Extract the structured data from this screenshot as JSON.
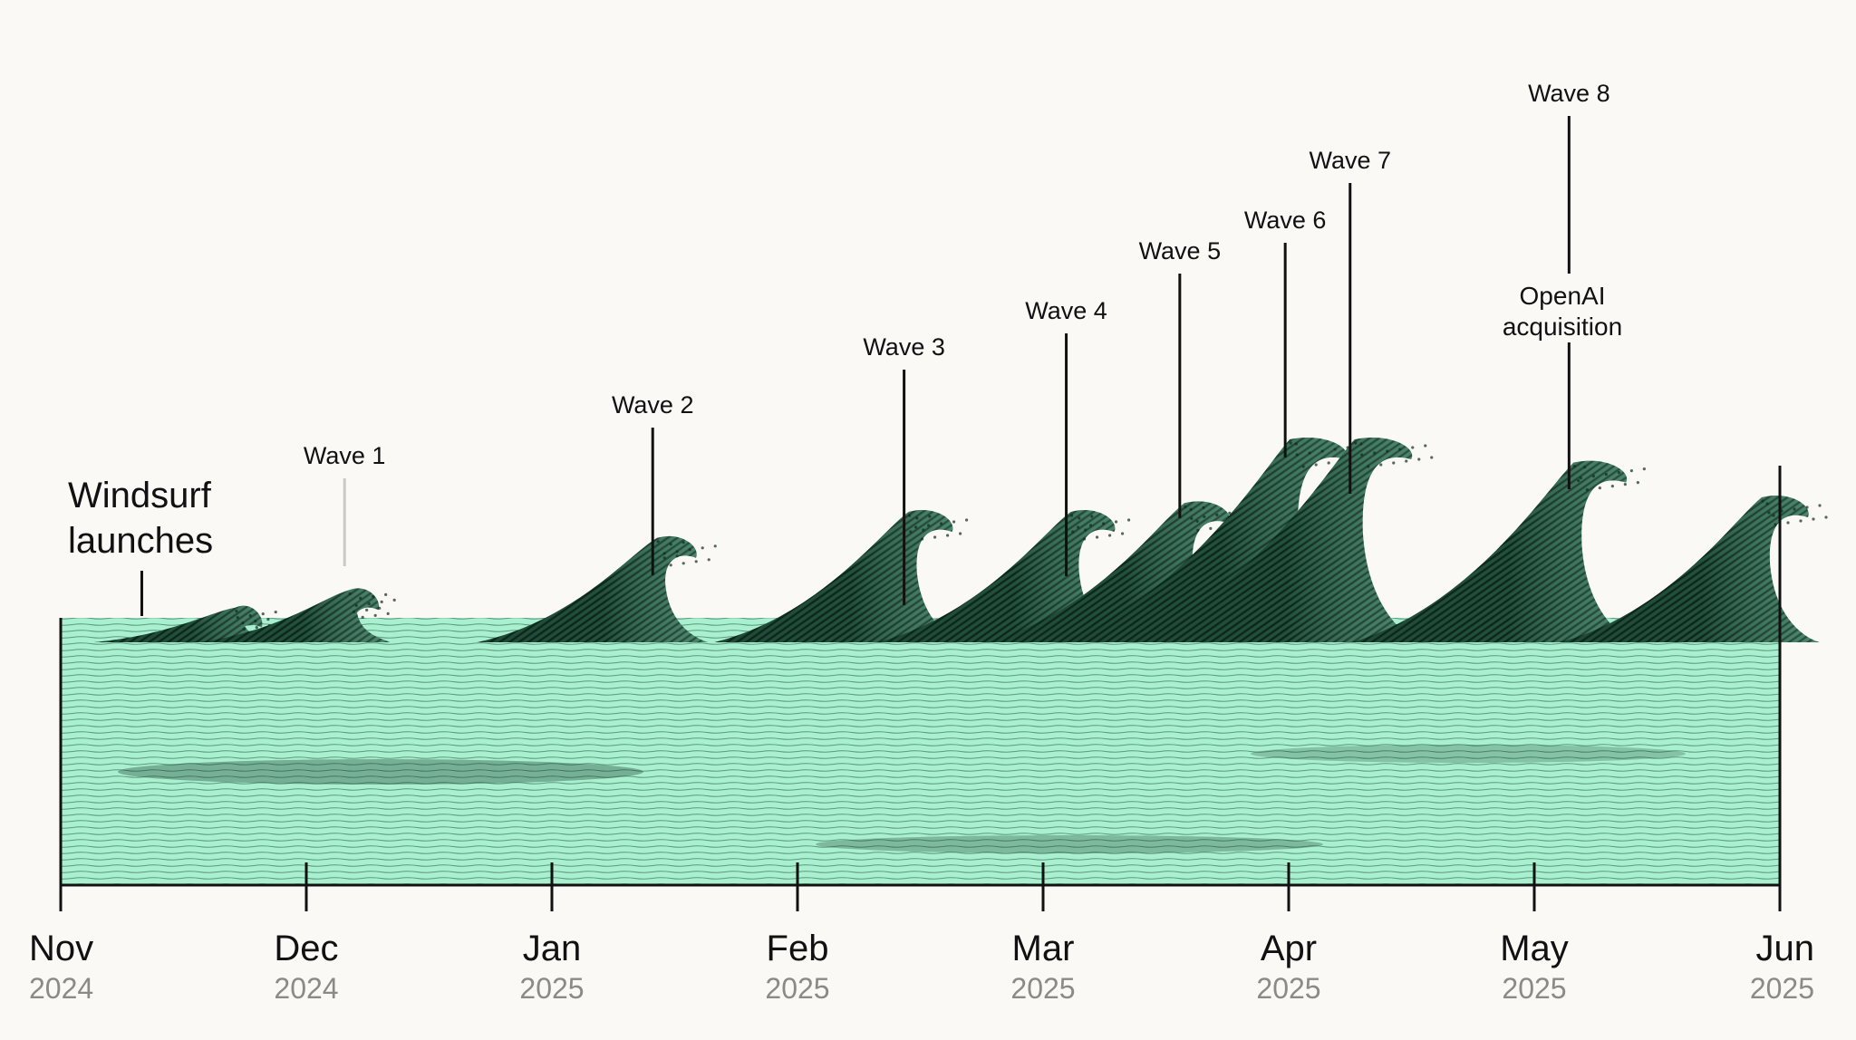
{
  "colors": {
    "background": "#FBF9F5",
    "water": "#A8F0CF",
    "wave_dark": "#0F2A1E",
    "ink": "#111111",
    "year_gray": "#8A8A86"
  },
  "launch": {
    "line1": "Windsurf",
    "line2": "launches",
    "date": "2024-11-11"
  },
  "waves": [
    {
      "label": "Wave 1",
      "date": "2024-12-06",
      "crest": 0.18
    },
    {
      "label": "Wave 2",
      "date": "2025-01-13",
      "crest": 0.36
    },
    {
      "label": "Wave 3",
      "date": "2025-02-13",
      "crest": 0.45
    },
    {
      "label": "Wave 4",
      "date": "2025-03-05",
      "crest": 0.45
    },
    {
      "label": "Wave 5",
      "date": "2025-03-19",
      "crest": 0.48
    },
    {
      "label": "Wave 6",
      "date": "2025-04-01",
      "crest": 0.7
    },
    {
      "label": "Wave 7",
      "date": "2025-04-09",
      "crest": 0.7
    },
    {
      "label": "Wave 8",
      "date": "2025-05-06",
      "crest": 0.62
    }
  ],
  "openai": {
    "line1": "OpenAI",
    "line2": "acquisition"
  },
  "axis": {
    "ticks": [
      {
        "month": "Nov",
        "year": "2024"
      },
      {
        "month": "Dec",
        "year": "2024"
      },
      {
        "month": "Jan",
        "year": "2025"
      },
      {
        "month": "Feb",
        "year": "2025"
      },
      {
        "month": "Mar",
        "year": "2025"
      },
      {
        "month": "Apr",
        "year": "2025"
      },
      {
        "month": "May",
        "year": "2025"
      },
      {
        "month": "Jun",
        "year": "2025"
      }
    ]
  }
}
